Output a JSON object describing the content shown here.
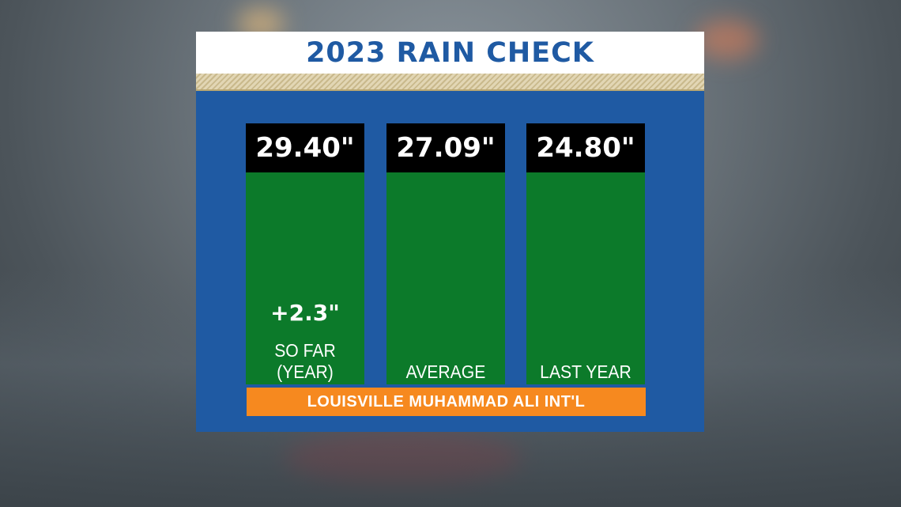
{
  "title": "2023 RAIN CHECK",
  "station": "LOUISVILLE MUHAMMAD ALI INT'L",
  "colors": {
    "panel": "#1f5aa3",
    "bar": "#0c7a2a",
    "value_box": "#000000",
    "station_bar": "#f6891f",
    "title_text": "#1f5aa3"
  },
  "chart_data": {
    "type": "bar",
    "title": "2023 RAIN CHECK",
    "categories": [
      "SO FAR (YEAR)",
      "AVERAGE",
      "LAST YEAR"
    ],
    "values": [
      29.4,
      27.09,
      24.8
    ],
    "value_labels": [
      "29.40\"",
      "27.09\"",
      "24.80\""
    ],
    "category_lines": [
      [
        "SO FAR",
        "(YEAR)"
      ],
      [
        "AVERAGE"
      ],
      [
        "LAST YEAR"
      ]
    ],
    "annotation": "+2.3\"",
    "xlabel": "",
    "ylabel": ""
  }
}
